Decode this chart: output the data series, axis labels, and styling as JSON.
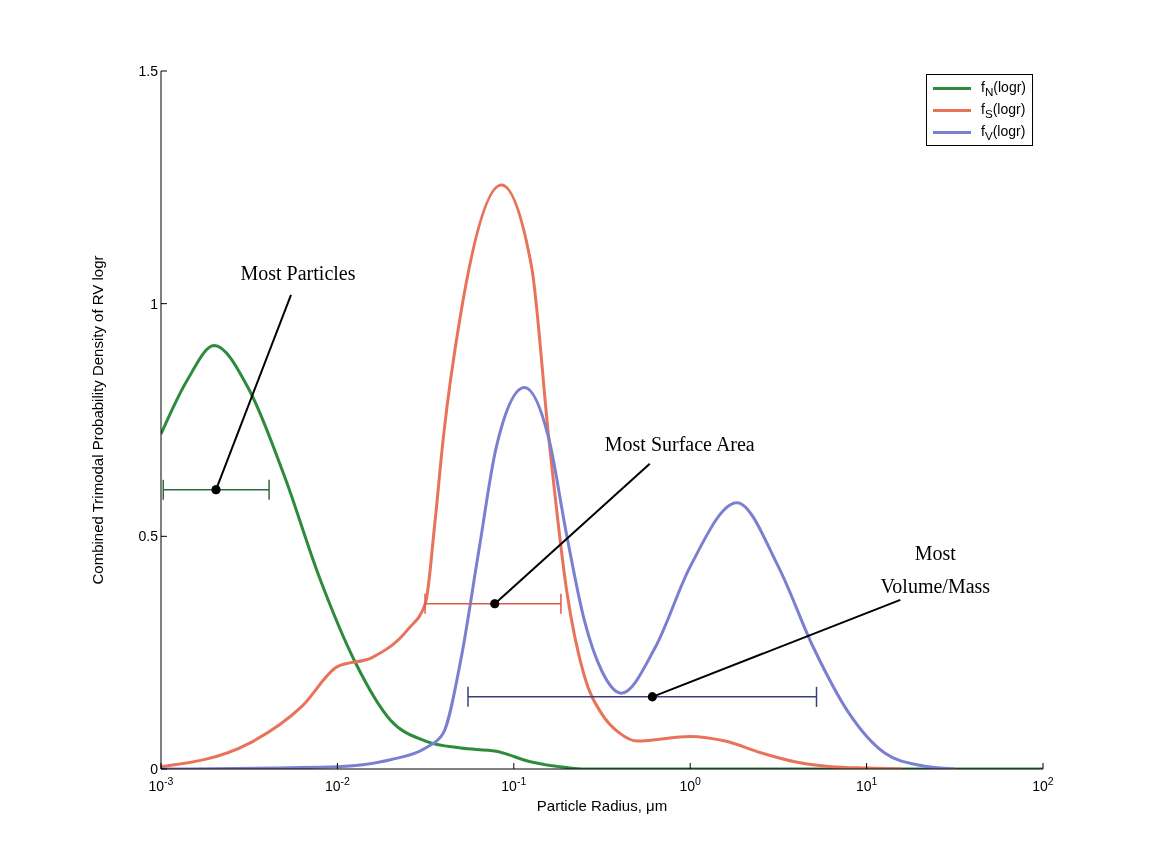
{
  "chart_data": {
    "type": "line",
    "xlabel": "Particle Radius, μm",
    "ylabel": "Combined Trimodal Probability Density of RV logr",
    "log": "x",
    "xlim": [
      0.001,
      100
    ],
    "xticks": [
      {
        "value": 0.001,
        "label": "10$^{-3}$"
      },
      {
        "value": 0.01,
        "label": "10$^{-2}$"
      },
      {
        "value": 0.1,
        "label": "10$^{-1}$"
      },
      {
        "value": 1,
        "label": "10$^{0}$"
      },
      {
        "value": 10,
        "label": "10$^{1}$"
      },
      {
        "value": 100,
        "label": "10$^{2}$"
      }
    ],
    "ylim": [
      0,
      1.5
    ],
    "yticks": [
      0,
      0.5,
      1,
      1.5
    ],
    "legend": "top right",
    "series": [
      {
        "name": "f$_{N}$(logr)",
        "color": "#2e8b3c",
        "x": [
          0.001,
          0.00141,
          0.002,
          0.00316,
          0.005,
          0.00794,
          0.0126,
          0.02,
          0.0316,
          0.0501,
          0.0794,
          0.126,
          0.2,
          0.251,
          1,
          10,
          100
        ],
        "values": [
          0.72,
          0.836,
          0.91,
          0.815,
          0.63,
          0.41,
          0.23,
          0.105,
          0.06,
          0.045,
          0.038,
          0.015,
          0.003,
          0,
          0,
          0,
          0
        ]
      },
      {
        "name": "f$_{S}$(logr)",
        "color": "#e8735a",
        "x": [
          0.001,
          0.00316,
          0.00631,
          0.01,
          0.0158,
          0.0251,
          0.0316,
          0.0355,
          0.0398,
          0.0501,
          0.0851,
          0.126,
          0.158,
          0.2,
          0.251,
          0.316,
          0.398,
          0.501,
          1,
          1.58,
          2.51,
          3.98,
          6.31,
          10,
          15.8
        ],
        "values": [
          0.005,
          0.055,
          0.135,
          0.22,
          0.24,
          0.3,
          0.357,
          0.52,
          0.71,
          0.98,
          1.255,
          1.08,
          0.71,
          0.38,
          0.2,
          0.118,
          0.077,
          0.06,
          0.07,
          0.06,
          0.035,
          0.015,
          0.005,
          0.002,
          0
        ]
      },
      {
        "name": "f$_{V}$(logr)",
        "color": "#7b7fd0",
        "x": [
          0.001,
          0.01,
          0.02,
          0.0316,
          0.0398,
          0.0501,
          0.0631,
          0.0794,
          0.115,
          0.158,
          0.2,
          0.251,
          0.316,
          0.407,
          0.631,
          1,
          1.84,
          3.16,
          5.01,
          7.94,
          12.6,
          20,
          31.6
        ],
        "values": [
          0,
          0.005,
          0.02,
          0.045,
          0.077,
          0.235,
          0.465,
          0.69,
          0.82,
          0.71,
          0.5,
          0.32,
          0.21,
          0.163,
          0.26,
          0.435,
          0.572,
          0.435,
          0.26,
          0.12,
          0.035,
          0.008,
          0
        ]
      },
      {
        "type": "scatter",
        "color": "#2e6b3c",
        "x": [
          0.00205
        ],
        "values": [
          0.6
        ],
        "xerrors": [
          [
            0.00103,
            0.0041
          ]
        ]
      },
      {
        "type": "scatter",
        "color": "#e05a4a",
        "x": [
          0.078
        ],
        "values": [
          0.355
        ],
        "xerrors": [
          [
            0.0314,
            0.185
          ]
        ]
      },
      {
        "type": "scatter",
        "color": "#3a3f80",
        "x": [
          0.61
        ],
        "values": [
          0.155
        ],
        "xerrors": [
          [
            0.055,
            5.2
          ]
        ]
      }
    ],
    "annotations": [
      {
        "text": "Most Particles",
        "x": 0.00205,
        "y": 0.6
      },
      {
        "text": "Most Surface Area",
        "x": 0.078,
        "y": 0.355
      },
      {
        "text": "Most\nVolume/Mass",
        "x": 0.61,
        "y": 0.155
      }
    ]
  }
}
